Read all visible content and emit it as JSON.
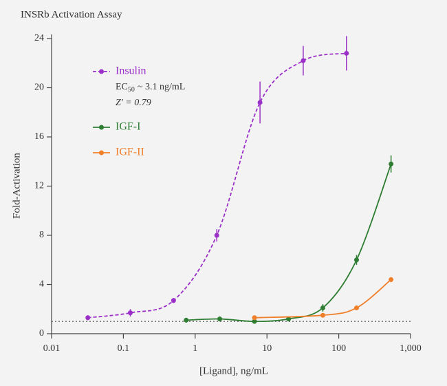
{
  "chart_data": {
    "type": "scatter",
    "title": "INSRb Activation Assay",
    "x_label": "[Ligand], ng/mL",
    "y_label": "Fold-Activation",
    "log_x": true,
    "xlim": [
      0.01,
      1000
    ],
    "xticks": [
      0.01,
      0.1,
      1,
      10,
      100,
      {
        "value": 1000,
        "label": "1,000"
      }
    ],
    "ylim": [
      0,
      24
    ],
    "yticks": [
      0,
      4,
      8,
      12,
      16,
      20,
      24
    ],
    "reference_line": 1,
    "annotation": {
      "ec_label": "EC",
      "ec_sub": "50",
      "ec_value": "~ 3.1 ng/mL",
      "z": "Z' = 0.79"
    },
    "series": [
      {
        "name": "Insulin",
        "color": "#9b30c8",
        "line_style": "dashed",
        "x": [
          0.032,
          0.125,
          0.5,
          2,
          8,
          32,
          128
        ],
        "values": [
          1.3,
          1.7,
          2.7,
          8.0,
          18.8,
          22.2,
          22.8
        ],
        "errors": [
          0.2,
          0.3,
          0.2,
          0.5,
          1.7,
          1.2,
          1.4
        ]
      },
      {
        "name": "IGF-I",
        "color": "#2e7d32",
        "line_style": "solid",
        "x": [
          0.75,
          2.2,
          6.7,
          20,
          60,
          177,
          535
        ],
        "values": [
          1.1,
          1.2,
          1.0,
          1.2,
          2.1,
          6.0,
          13.8
        ],
        "errors": [
          0.2,
          0.2,
          0.1,
          0.2,
          0.3,
          0.4,
          0.7
        ]
      },
      {
        "name": "IGF-II",
        "color": "#f07f2a",
        "line_style": "solid",
        "x": [
          6.7,
          60,
          177,
          535
        ],
        "values": [
          1.3,
          1.5,
          2.1,
          4.4
        ],
        "errors": [
          0.1,
          0.1,
          0.1,
          0.2
        ]
      }
    ]
  }
}
